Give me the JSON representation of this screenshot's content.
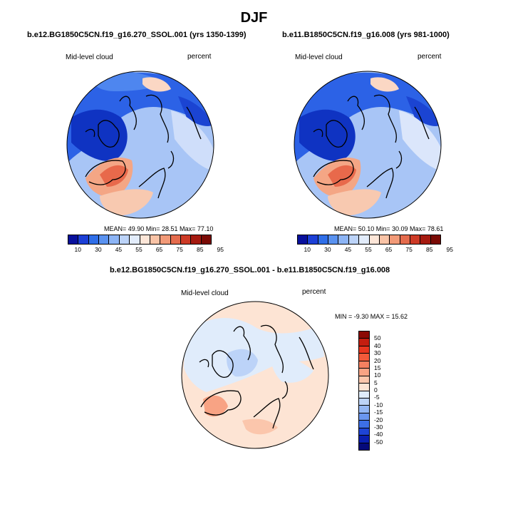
{
  "title": "DJF",
  "panel1": {
    "title": "b.e12.BG1850C5CN.f19_g16.270_SSOL.001 (yrs 1350-1399)",
    "variable": "Mid-level cloud",
    "units": "percent",
    "stats": "MEAN=  49.90  Min=  28.51  Max=  77.10"
  },
  "panel2": {
    "title": "b.e11.B1850C5CN.f19_g16.008 (yrs 981-1000)",
    "variable": "Mid-level cloud",
    "units": "percent",
    "stats": "MEAN=  50.10  Min=  30.09  Max=  78.61"
  },
  "panel3": {
    "title": "b.e12.BG1850C5CN.f19_g16.270_SSOL.001 - b.e11.B1850C5CN.f19_g16.008",
    "variable": "Mid-level cloud",
    "units": "percent",
    "stats": "MIN =  -9.30 MAX =  15.62"
  },
  "cloud_colorbar": {
    "labels": [
      "10",
      "30",
      "45",
      "55",
      "65",
      "75",
      "85",
      "95"
    ],
    "colors": [
      "#08109c",
      "#1c3fd6",
      "#2f6ee8",
      "#5a92f0",
      "#8cb4f5",
      "#bcd3f8",
      "#e2ecfb",
      "#fde6d8",
      "#f9c3a6",
      "#f29a78",
      "#e46b4d",
      "#cd3a26",
      "#a51a10",
      "#7a0a05"
    ]
  },
  "diff_colorbar": {
    "labels": [
      "50",
      "40",
      "30",
      "20",
      "15",
      "10",
      "5",
      "0",
      "-5",
      "-10",
      "-15",
      "-20",
      "-30",
      "-40",
      "-50"
    ],
    "colors": [
      "#8c0a05",
      "#c41e10",
      "#e8361f",
      "#f25a3a",
      "#f58060",
      "#f8a384",
      "#fbc6ac",
      "#fde4d4",
      "#e0ecfb",
      "#bcd3f8",
      "#93b6f4",
      "#6a96ef",
      "#3d6fe6",
      "#1e44d6",
      "#0a1fb0",
      "#050a7a"
    ]
  }
}
